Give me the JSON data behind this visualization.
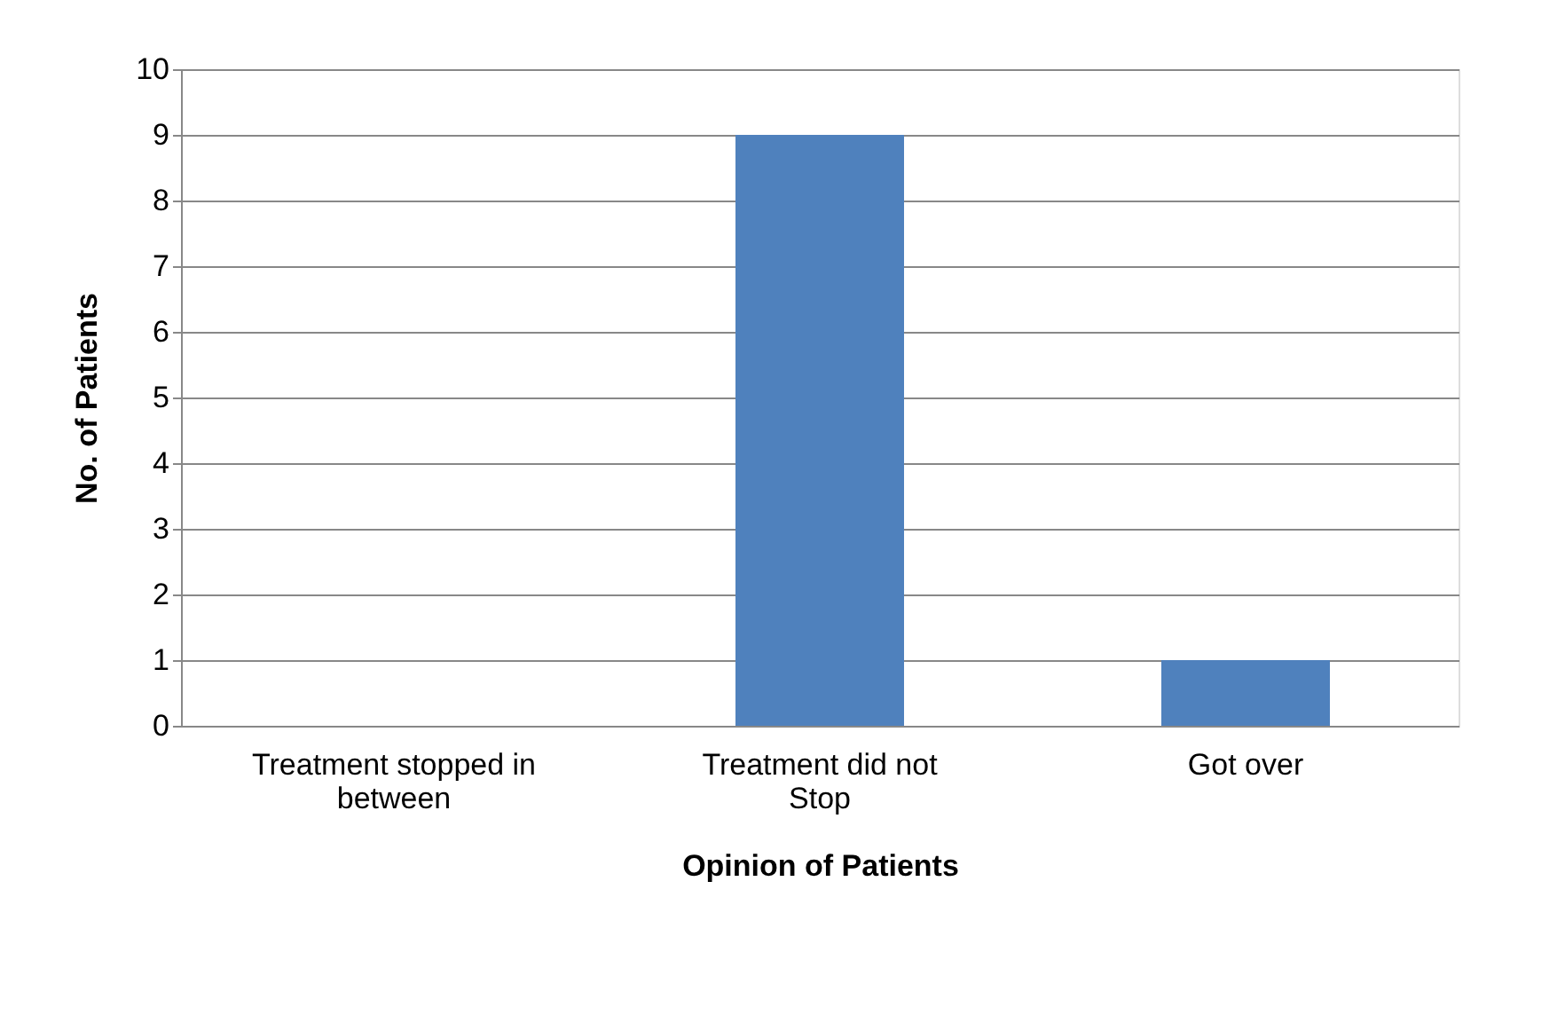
{
  "chart_data": {
    "type": "bar",
    "xlabel": "Opinion of Patients",
    "ylabel": "No. of Patients",
    "categories": [
      "Treatment stopped in between",
      "Treatment did not Stop",
      "Got over"
    ],
    "values": [
      0,
      9,
      1
    ],
    "color": "#4f81bd",
    "ylim": [
      0,
      10
    ],
    "yticks": [
      0,
      1,
      2,
      3,
      4,
      5,
      6,
      7,
      8,
      9,
      10
    ],
    "grid": "y"
  }
}
